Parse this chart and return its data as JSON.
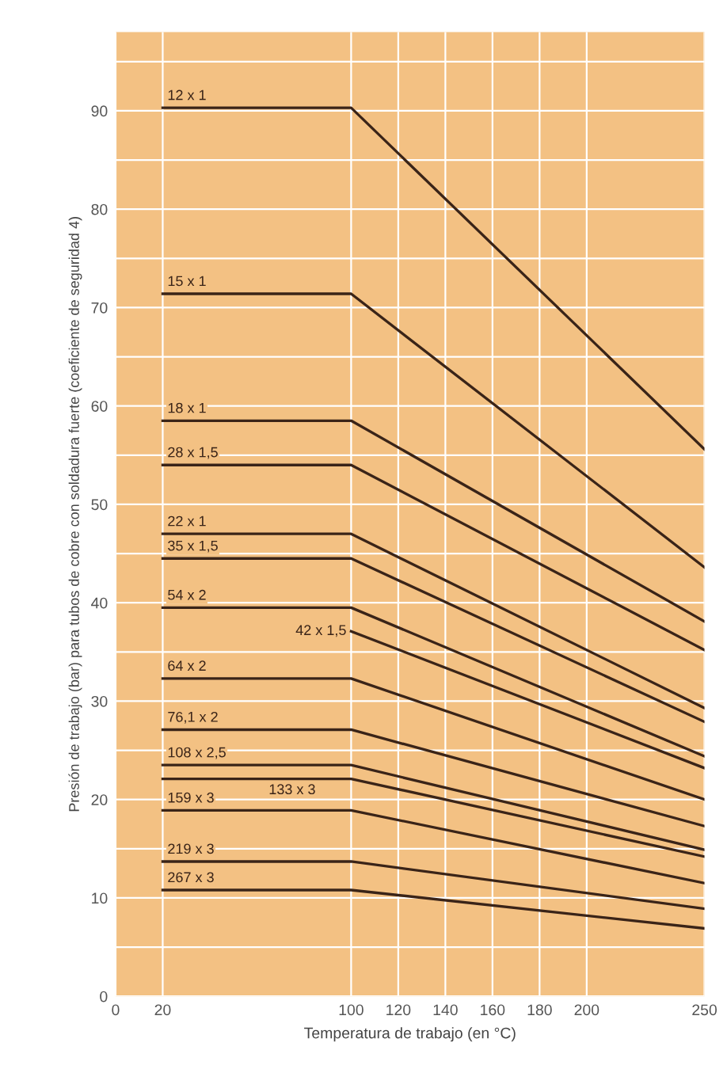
{
  "chart_data": {
    "type": "line",
    "xlabel": "Temperatura de trabajo (en °C)",
    "ylabel": "Presión de trabajo (bar) para tubos de cobre con soldadura fuerte (coeficiente de seguridad 4)",
    "x": [
      20,
      100,
      250
    ],
    "series": [
      {
        "name": "12 x 1",
        "color": "#3a2418",
        "values": [
          90.3,
          90.3,
          55.6
        ]
      },
      {
        "name": "15 x 1",
        "color": "#3a2418",
        "values": [
          71.4,
          71.4,
          43.6
        ]
      },
      {
        "name": "18 x 1",
        "color": "#3a2418",
        "values": [
          58.5,
          58.5,
          38.1
        ]
      },
      {
        "name": "28 x 1,5",
        "color": "#3a2418",
        "values": [
          54.0,
          54.0,
          35.2
        ]
      },
      {
        "name": "22 x 1",
        "color": "#3a2418",
        "values": [
          47.0,
          47.0,
          29.3
        ]
      },
      {
        "name": "35 x 1,5",
        "color": "#3a2418",
        "values": [
          44.5,
          44.5,
          27.9
        ]
      },
      {
        "name": "54 x 2",
        "color": "#3a2418",
        "values": [
          39.5,
          39.5,
          24.4
        ]
      },
      {
        "name": "42 x 1,5",
        "color": "#3a2418",
        "values": [
          null,
          37.1,
          23.2
        ]
      },
      {
        "name": "64 x 2",
        "color": "#3a2418",
        "values": [
          32.3,
          32.3,
          20.0
        ]
      },
      {
        "name": "76,1 x 2",
        "color": "#3a2418",
        "values": [
          27.1,
          27.1,
          17.3
        ]
      },
      {
        "name": "108 x 2,5",
        "color": "#3a2418",
        "values": [
          23.5,
          23.5,
          14.9
        ]
      },
      {
        "name": "133 x 3",
        "color": "#3a2418",
        "values": [
          22.1,
          22.1,
          14.2
        ]
      },
      {
        "name": "159 x 3",
        "color": "#3a2418",
        "values": [
          18.9,
          18.9,
          11.5
        ]
      },
      {
        "name": "219 x 3",
        "color": "#3a2418",
        "values": [
          13.7,
          13.7,
          8.9
        ]
      },
      {
        "name": "267 x 3",
        "color": "#3a2418",
        "values": [
          10.8,
          10.8,
          6.9
        ]
      }
    ],
    "xlim": [
      0,
      250
    ],
    "xticks": [
      0,
      20,
      100,
      120,
      140,
      160,
      180,
      200,
      250
    ],
    "ylim": [
      0,
      98
    ],
    "yticks": [
      0,
      {
        "value": 5,
        "label": null
      },
      10,
      {
        "value": 15,
        "label": null
      },
      20,
      {
        "value": 25,
        "label": null
      },
      30,
      {
        "value": 35,
        "label": null
      },
      40,
      {
        "value": 45,
        "label": null
      },
      50,
      {
        "value": 55,
        "label": null
      },
      60,
      {
        "value": 65,
        "label": null
      },
      70,
      {
        "value": 75,
        "label": null
      },
      80,
      {
        "value": 85,
        "label": null
      },
      90,
      {
        "value": 95,
        "label": null
      }
    ],
    "grid": true,
    "legend": false,
    "marker": "none",
    "line_style": "solid"
  }
}
